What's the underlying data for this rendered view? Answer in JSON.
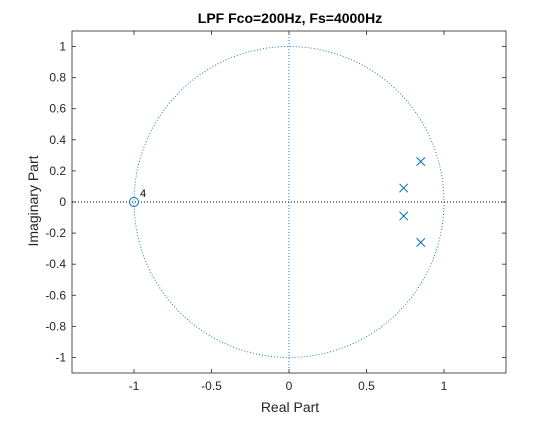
{
  "chart_data": {
    "type": "scatter",
    "title": "LPF Fco=200Hz, Fs=4000Hz",
    "xlabel": "Real Part",
    "ylabel": "Imaginary Part",
    "xlim": [
      -1.4,
      1.4
    ],
    "ylim": [
      -1.1,
      1.1
    ],
    "xticks": [
      -1,
      -0.5,
      0,
      0.5,
      1
    ],
    "xtick_labels": [
      "-1",
      "-0.5",
      "0",
      "0.5",
      "1"
    ],
    "yticks": [
      -1,
      -0.8,
      -0.6,
      -0.4,
      -0.2,
      0,
      0.2,
      0.4,
      0.6,
      0.8,
      1
    ],
    "ytick_labels": [
      "-1",
      "-0.8",
      "-0.6",
      "-0.4",
      "-0.2",
      "0",
      "0.2",
      "0.4",
      "0.6",
      "0.8",
      "1"
    ],
    "grid": false,
    "unit_circle": true,
    "zeros": [
      {
        "x": -1,
        "y": 0,
        "multiplicity_label": "4"
      }
    ],
    "poles": [
      {
        "x": 0.85,
        "y": 0.26
      },
      {
        "x": 0.74,
        "y": 0.09
      },
      {
        "x": 0.74,
        "y": -0.09
      },
      {
        "x": 0.85,
        "y": -0.26
      }
    ],
    "colors": {
      "marker": "#0072BD",
      "guide": "#0072BD",
      "axis": "#262626",
      "text": "#262626"
    }
  }
}
